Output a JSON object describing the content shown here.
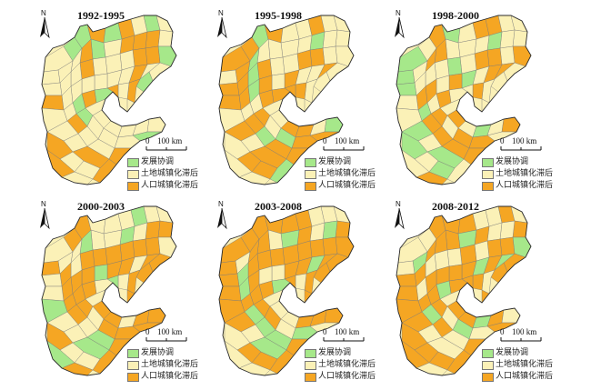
{
  "colors": {
    "coordinated": "#a6e88a",
    "land_lag": "#fbf1b7",
    "pop_lag": "#f5a623",
    "boundary": "#7a7a7a",
    "region_outline": "#2b2b2b"
  },
  "panels": [
    {
      "period": "1992-1995",
      "mix": [
        0.14,
        0.66,
        0.2
      ]
    },
    {
      "period": "1995-1998",
      "mix": [
        0.12,
        0.48,
        0.4
      ]
    },
    {
      "period": "1998-2000",
      "mix": [
        0.18,
        0.52,
        0.3
      ]
    },
    {
      "period": "2000-2003",
      "mix": [
        0.12,
        0.38,
        0.5
      ]
    },
    {
      "period": "2003-2008",
      "mix": [
        0.16,
        0.28,
        0.56
      ]
    },
    {
      "period": "2008-2012",
      "mix": [
        0.12,
        0.28,
        0.6
      ]
    }
  ],
  "north_label": "N",
  "scale": {
    "start": "0",
    "label": "100 km"
  },
  "legend": [
    {
      "label": "发展协调",
      "color_key": "coordinated"
    },
    {
      "label": "土地城镇化滞后",
      "color_key": "land_lag"
    },
    {
      "label": "人口城镇化滞后",
      "color_key": "pop_lag"
    }
  ]
}
